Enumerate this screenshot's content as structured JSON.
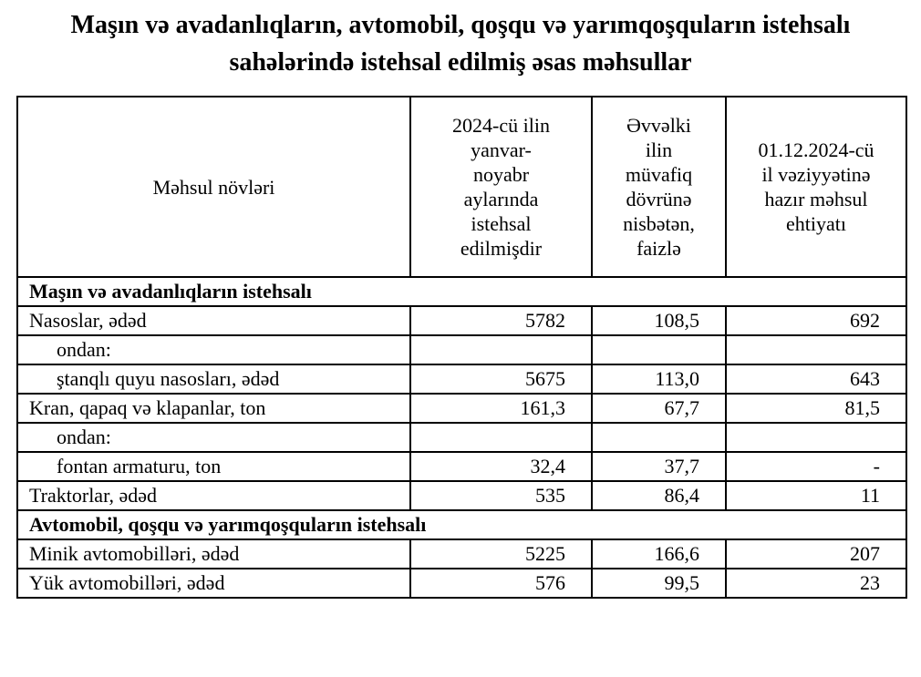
{
  "title": "Maşın və avadanlıqların, avtomobil, qoşqu və yarımqoşquların istehsalı sahələrində istehsal edilmiş əsas məhsullar",
  "table": {
    "headers": {
      "product_types": "Məhsul növləri",
      "produced": "2024-cü ilin\nyanvar-\nnoyabr\naylarında\nistehsal\nedilmişdir",
      "percent_prev_year": "Əvvəlki\nilin\nmüvafiq\ndövrünə\nnisbətən,\nfaizlə",
      "stock": "01.12.2024-cü\nil vəziyyətinə\nhazır məhsul\nehtiyatı"
    },
    "rows": [
      {
        "type": "section",
        "label": "Maşın və avadanlıqların istehsalı"
      },
      {
        "type": "data",
        "indent": 0,
        "label": "Nasoslar, ədəd",
        "produced": "5782",
        "percent": "108,5",
        "stock": "692"
      },
      {
        "type": "data",
        "indent": 1,
        "label": "ondan:",
        "produced": "",
        "percent": "",
        "stock": ""
      },
      {
        "type": "data",
        "indent": 1,
        "label": "ştanqlı quyu nasosları, ədəd",
        "produced": "5675",
        "percent": "113,0",
        "stock": "643"
      },
      {
        "type": "data",
        "indent": 0,
        "label": "Kran, qapaq və klapanlar, ton",
        "produced": "161,3",
        "percent": "67,7",
        "stock": "81,5"
      },
      {
        "type": "data",
        "indent": 1,
        "label": "ondan:",
        "produced": "",
        "percent": "",
        "stock": ""
      },
      {
        "type": "data",
        "indent": 1,
        "label": "fontan armaturu, ton",
        "produced": "32,4",
        "percent": "37,7",
        "stock": "-"
      },
      {
        "type": "data",
        "indent": 0,
        "label": "Traktorlar, ədəd",
        "produced": "535",
        "percent": "86,4",
        "stock": "11"
      },
      {
        "type": "section",
        "label": "Avtomobil, qoşqu və yarımqoşquların istehsalı"
      },
      {
        "type": "data",
        "indent": 0,
        "label": "Minik avtomobilləri, ədəd",
        "produced": "5225",
        "percent": "166,6",
        "stock": "207"
      },
      {
        "type": "data",
        "indent": 0,
        "label": "Yük avtomobilləri, ədəd",
        "produced": "576",
        "percent": "99,5",
        "stock": "23"
      }
    ]
  }
}
